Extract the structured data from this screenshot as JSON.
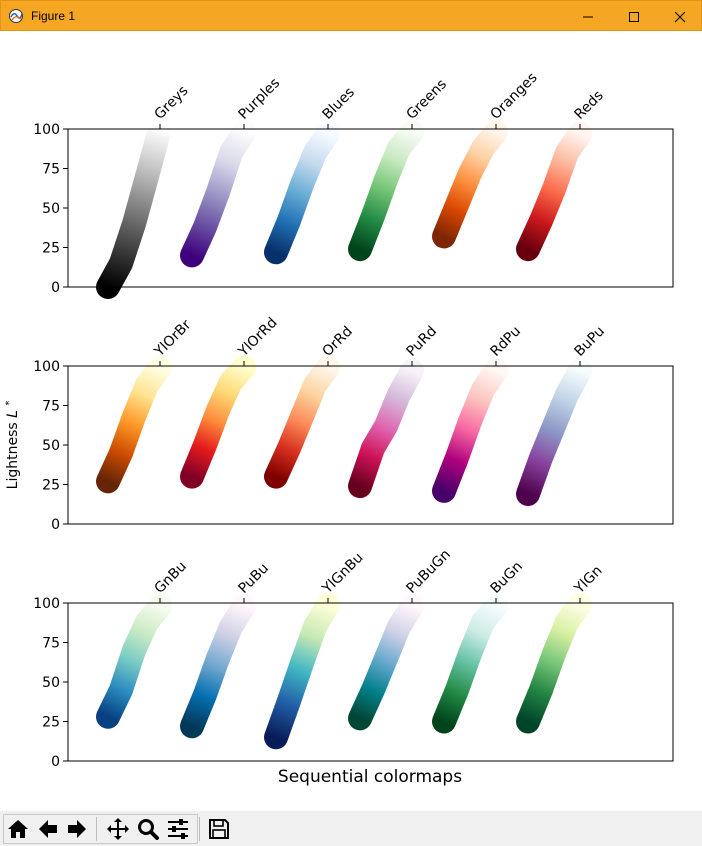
{
  "window": {
    "title": "Figure 1"
  },
  "toolbar": {
    "buttons": [
      {
        "name": "home-icon",
        "label": "Home"
      },
      {
        "name": "back-arrow-icon",
        "label": "Back"
      },
      {
        "name": "forward-arrow-icon",
        "label": "Forward"
      },
      {
        "name": "pan-icon",
        "label": "Pan"
      },
      {
        "name": "zoom-icon",
        "label": "Zoom"
      },
      {
        "name": "configure-subplots-icon",
        "label": "Configure subplots"
      },
      {
        "name": "save-icon",
        "label": "Save"
      }
    ]
  },
  "chart_data": {
    "type": "scatter",
    "ylabel": "Lightness",
    "ylabel_symbol": "L",
    "ylabel_superscript": "*",
    "xlabel": "Sequential colormaps",
    "ylim": [
      0,
      100
    ],
    "yticks": [
      "0",
      "25",
      "50",
      "75",
      "100"
    ],
    "legend": "none",
    "grid": false,
    "panels": [
      {
        "colormaps": [
          {
            "name": "Greys",
            "L": [
              0,
              15,
              40,
              70,
              100
            ],
            "colors": [
              "#000000",
              "#3d3d3d",
              "#7f7f7f",
              "#c2c2c2",
              "#ffffff"
            ]
          },
          {
            "name": "Purples",
            "L": [
              20,
              38,
              60,
              85,
              98
            ],
            "colors": [
              "#3f007d",
              "#6a51a3",
              "#9e9ac8",
              "#dadaeb",
              "#fcfbfd"
            ]
          },
          {
            "name": "Blues",
            "L": [
              22,
              42,
              65,
              85,
              97
            ],
            "colors": [
              "#08306b",
              "#2171b5",
              "#6baed6",
              "#c6dbef",
              "#f7fbff"
            ]
          },
          {
            "name": "Greens",
            "L": [
              24,
              45,
              68,
              88,
              98
            ],
            "colors": [
              "#00441b",
              "#238b45",
              "#74c476",
              "#c7e9c0",
              "#f7fcf5"
            ]
          },
          {
            "name": "Oranges",
            "L": [
              32,
              52,
              72,
              88,
              98
            ],
            "colors": [
              "#7f2704",
              "#d94801",
              "#fd8d3c",
              "#fdd0a2",
              "#fff5eb"
            ]
          },
          {
            "name": "Reds",
            "L": [
              24,
              42,
              62,
              85,
              97
            ],
            "colors": [
              "#67000d",
              "#cb181d",
              "#fb6a4a",
              "#fcbba1",
              "#fff5f0"
            ]
          }
        ]
      },
      {
        "colormaps": [
          {
            "name": "YlOrBr",
            "L": [
              27,
              45,
              68,
              88,
              99
            ],
            "colors": [
              "#662506",
              "#cc4c02",
              "#fe9929",
              "#fee391",
              "#ffffe5"
            ]
          },
          {
            "name": "YlOrRd",
            "L": [
              30,
              50,
              72,
              90,
              99
            ],
            "colors": [
              "#800026",
              "#e31a1c",
              "#fd8d3c",
              "#fed976",
              "#ffffcc"
            ]
          },
          {
            "name": "OrRd",
            "L": [
              30,
              48,
              68,
              88,
              99
            ],
            "colors": [
              "#7f0000",
              "#d7301f",
              "#fc8d59",
              "#fdd49e",
              "#fff7ec"
            ]
          },
          {
            "name": "PuRd",
            "L": [
              24,
              48,
              62,
              82,
              97
            ],
            "colors": [
              "#67001f",
              "#ce1256",
              "#df65b0",
              "#d4b9da",
              "#f7f4f9"
            ]
          },
          {
            "name": "RdPu",
            "L": [
              21,
              42,
              65,
              85,
              97
            ],
            "colors": [
              "#49006a",
              "#ae017e",
              "#f768a1",
              "#fcc5c0",
              "#fff7f3"
            ]
          },
          {
            "name": "BuPu",
            "L": [
              19,
              42,
              62,
              82,
              97
            ],
            "colors": [
              "#4d004b",
              "#88419d",
              "#8c96c6",
              "#bfd3e6",
              "#f7fcfd"
            ]
          }
        ]
      },
      {
        "colormaps": [
          {
            "name": "GnBu",
            "L": [
              28,
              45,
              70,
              88,
              98
            ],
            "colors": [
              "#084081",
              "#2b8cbe",
              "#7bccc4",
              "#ccebc5",
              "#f7fcf0"
            ]
          },
          {
            "name": "PuBu",
            "L": [
              22,
              42,
              65,
              85,
              98
            ],
            "colors": [
              "#023858",
              "#0570b0",
              "#74a9cf",
              "#d0d1e6",
              "#fff7fb"
            ]
          },
          {
            "name": "YlGnBu",
            "L": [
              15,
              38,
              62,
              85,
              99
            ],
            "colors": [
              "#081d58",
              "#225ea8",
              "#41b6c4",
              "#c7e9b4",
              "#ffffd9"
            ]
          },
          {
            "name": "PuBuGn",
            "L": [
              27,
              45,
              65,
              85,
              98
            ],
            "colors": [
              "#014636",
              "#02818a",
              "#67a9cf",
              "#d0d1e6",
              "#fff7fb"
            ]
          },
          {
            "name": "BuGn",
            "L": [
              25,
              45,
              68,
              88,
              98
            ],
            "colors": [
              "#00441b",
              "#238b45",
              "#66c2a4",
              "#ccece6",
              "#f7fcfd"
            ]
          },
          {
            "name": "YlGn",
            "L": [
              25,
              45,
              68,
              88,
              99
            ],
            "colors": [
              "#004529",
              "#238443",
              "#78c679",
              "#d9f0a3",
              "#ffffe5"
            ]
          }
        ]
      }
    ]
  }
}
